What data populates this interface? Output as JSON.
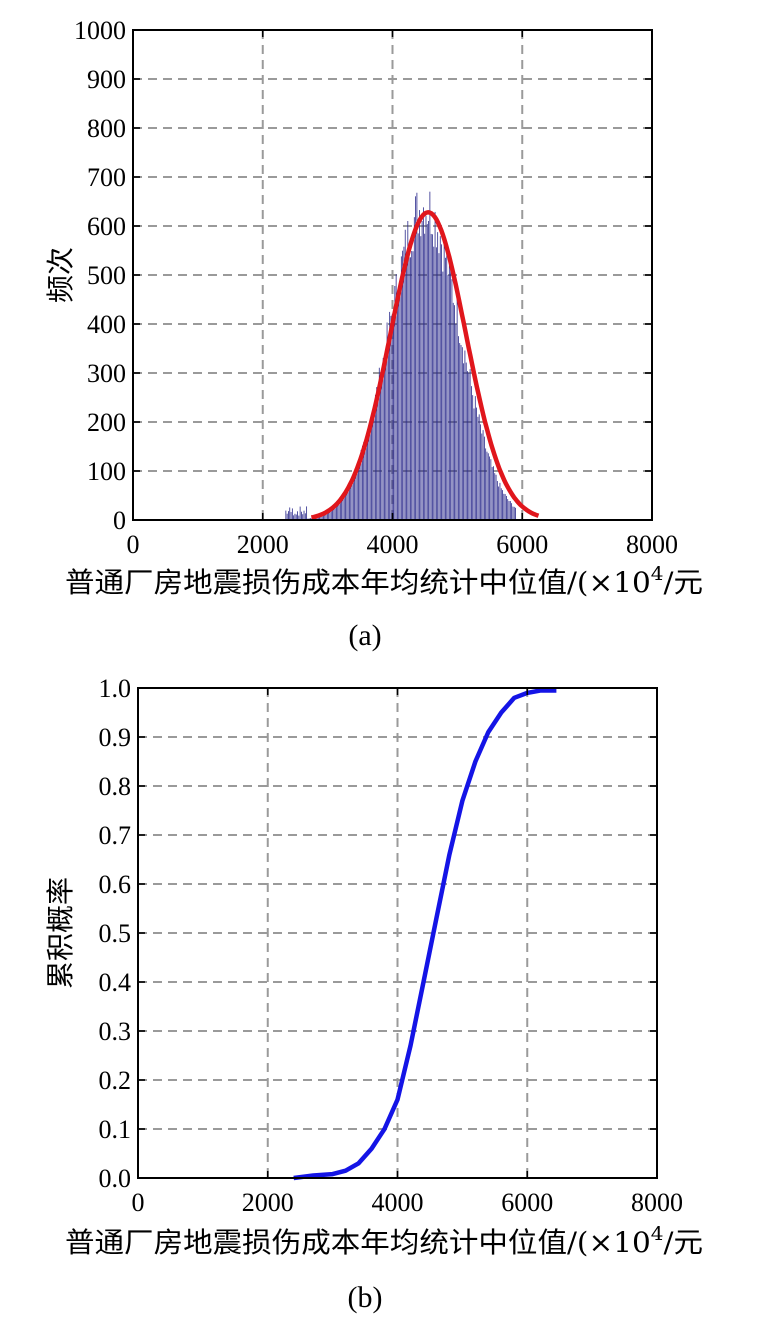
{
  "chart_data": [
    {
      "type": "bar",
      "panel": "(a)",
      "xlabel_main": "普通厂房地震损伤成本年均统计中位值/(×10",
      "xlabel_sup": "4",
      "xlabel_tail": "/元",
      "ylabel": "频次",
      "xlim": [
        0,
        8000
      ],
      "ylim": [
        0,
        1000
      ],
      "xticks": [
        "0",
        "2000",
        "4000",
        "6000",
        "8000"
      ],
      "yticks": [
        "0",
        "100",
        "200",
        "300",
        "400",
        "500",
        "600",
        "700",
        "800",
        "900",
        "1000"
      ],
      "grid": true,
      "histogram": {
        "color": "#2b2a8c",
        "mean": 4500,
        "sd": 550,
        "peak": 640,
        "x_range": [
          2350,
          5900
        ]
      },
      "fit_curve": {
        "color": "#e0161c",
        "mean": 4550,
        "sd": 580,
        "peak": 628,
        "x_range": [
          2750,
          6250
        ]
      }
    },
    {
      "type": "line",
      "panel": "(b)",
      "xlabel_main": "普通厂房地震损伤成本年均统计中位值/(×10",
      "xlabel_sup": "4",
      "xlabel_tail": "/元",
      "ylabel": "累积概率",
      "xlim": [
        0,
        8000
      ],
      "ylim": [
        0,
        1
      ],
      "xticks": [
        "0",
        "2000",
        "4000",
        "6000",
        "8000"
      ],
      "yticks": [
        "0.0",
        "0.1",
        "0.2",
        "0.3",
        "0.4",
        "0.5",
        "0.6",
        "0.7",
        "0.8",
        "0.9",
        "1.0"
      ],
      "grid": true,
      "series": [
        {
          "color": "#1414e6",
          "x": [
            2400,
            2700,
            3000,
            3200,
            3400,
            3600,
            3800,
            4000,
            4200,
            4400,
            4600,
            4800,
            5000,
            5200,
            5400,
            5600,
            5800,
            6000,
            6200,
            6450
          ],
          "y": [
            0.0,
            0.005,
            0.008,
            0.015,
            0.03,
            0.06,
            0.1,
            0.16,
            0.27,
            0.4,
            0.53,
            0.66,
            0.77,
            0.85,
            0.91,
            0.95,
            0.98,
            0.99,
            0.995,
            0.995
          ]
        }
      ]
    }
  ]
}
